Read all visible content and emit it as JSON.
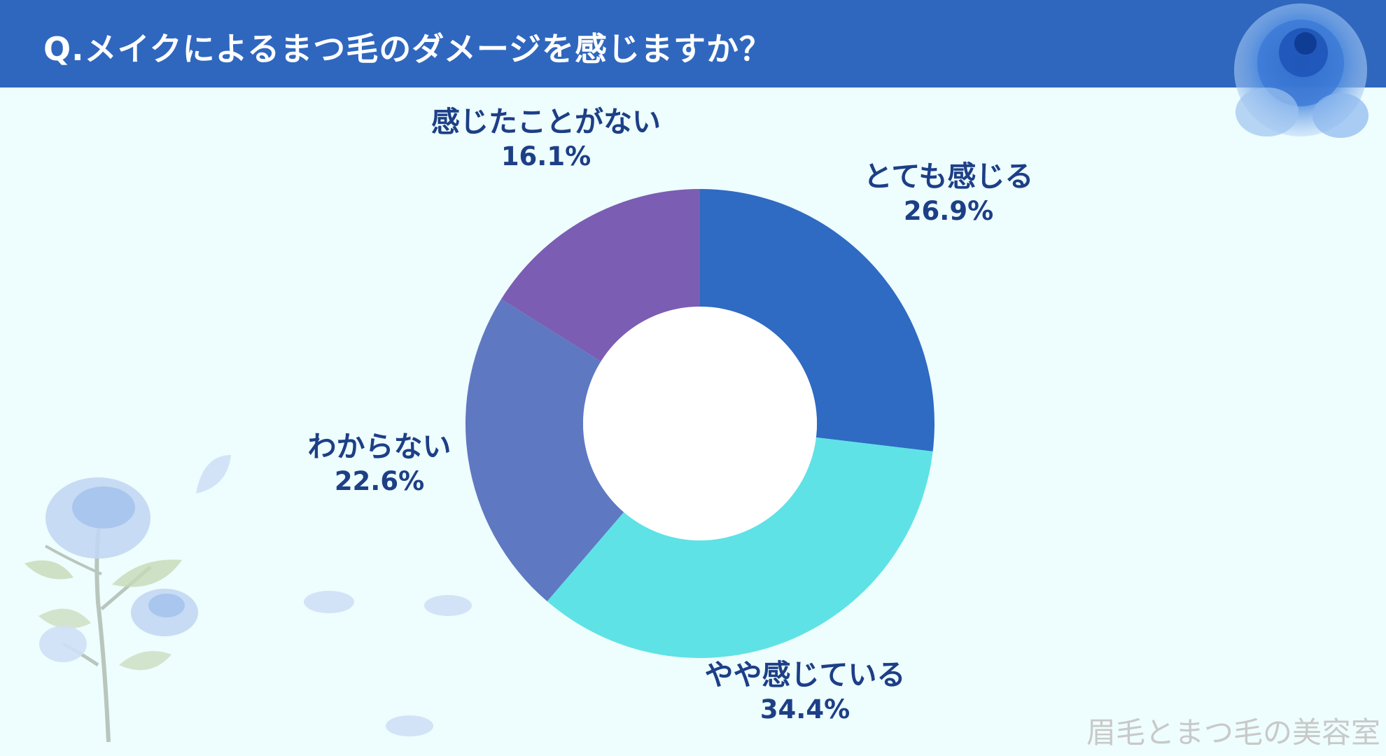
{
  "header": {
    "title": "Q.メイクによるまつ毛のダメージを感じますか？"
  },
  "watermark": "眉毛とまつ毛の美容室",
  "colors": {
    "header_bg": "#2f67bf",
    "background": "#eefdfd",
    "label_text": "#1c3f86"
  },
  "chart_data": {
    "type": "pie",
    "donut": true,
    "title": "Q.メイクによるまつ毛のダメージを感じますか？",
    "slices": [
      {
        "label": "とても感じる",
        "value": 26.9,
        "value_text": "26.9%",
        "color": "#2f6ac3"
      },
      {
        "label": "やや感じている",
        "value": 34.4,
        "value_text": "34.4%",
        "color": "#5ee2e6"
      },
      {
        "label": "わからない",
        "value": 22.6,
        "value_text": "22.6%",
        "color": "#5f78c2"
      },
      {
        "label": "感じたことがない",
        "value": 16.1,
        "value_text": "16.1%",
        "color": "#7b5db3"
      }
    ],
    "start_angle_deg": 0,
    "direction": "clockwise",
    "legend": "labels outside slices"
  }
}
